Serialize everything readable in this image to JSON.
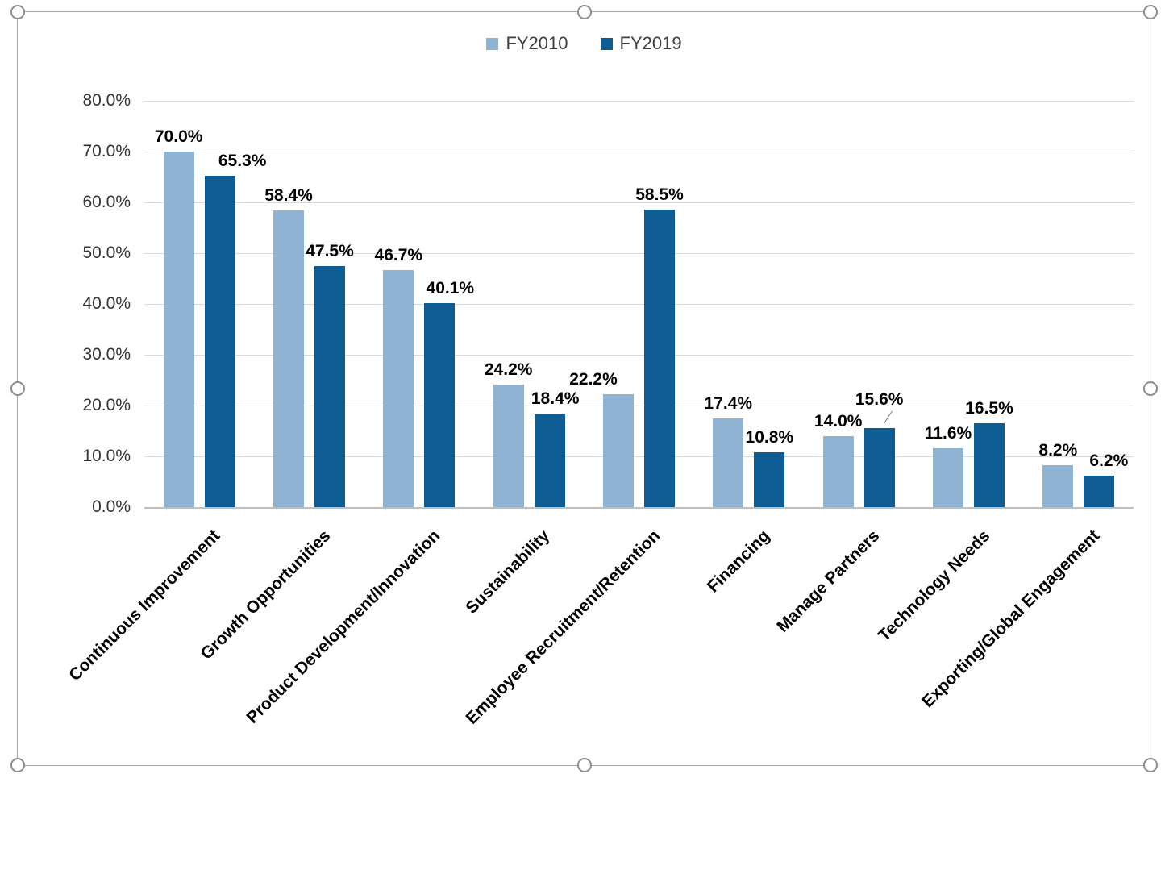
{
  "chart_data": {
    "type": "bar",
    "title": "",
    "categories": [
      "Continuous Improvement",
      "Growth Opportunities",
      "Product Development/Innovation",
      "Sustainability",
      "Employee Recruitment/Retention",
      "Financing",
      "Manage Partners",
      "Technology Needs",
      "Exporting/Global Engagement"
    ],
    "series": [
      {
        "name": "FY2010",
        "color": "#8EB3D3",
        "values": [
          70.0,
          58.4,
          46.7,
          24.2,
          22.2,
          17.4,
          14.0,
          11.6,
          8.2
        ]
      },
      {
        "name": "FY2019",
        "color": "#0E5C94",
        "values": [
          65.3,
          47.5,
          40.1,
          18.4,
          58.5,
          10.8,
          15.6,
          16.5,
          6.2
        ]
      }
    ],
    "data_labels": {
      "FY2010": [
        "70.0%",
        "58.4%",
        "46.7%",
        "24.2%",
        "22.2%",
        "17.4%",
        "14.0%",
        "11.6%",
        "8.2%"
      ],
      "FY2019": [
        "65.3%",
        "47.5%",
        "40.1%",
        "18.4%",
        "58.5%",
        "10.8%",
        "15.6%",
        "16.5%",
        "6.2%"
      ]
    },
    "y_axis": {
      "min": 0,
      "max": 80,
      "step": 10,
      "tick_labels": [
        "80.0%",
        "70.0%",
        "60.0%",
        "50.0%",
        "40.0%",
        "30.0%",
        "20.0%",
        "10.0%",
        "0.0%"
      ]
    },
    "x_axis": {
      "label_rotation_deg": 45
    },
    "legend": {
      "position": "top",
      "entries": [
        "FY2010",
        "FY2019"
      ]
    },
    "grid": true
  },
  "colors": {
    "fy2010": "#8EB3D3",
    "fy2019": "#0E5C94",
    "gridline": "#D9D9D9",
    "axis_line": "#BFBFBF",
    "data_label_text": "#000000",
    "axis_text": "#333333",
    "legend_text": "#3F3F3F",
    "frame_border": "#A6A6A6",
    "selection_handle": "#8C8C8C"
  }
}
